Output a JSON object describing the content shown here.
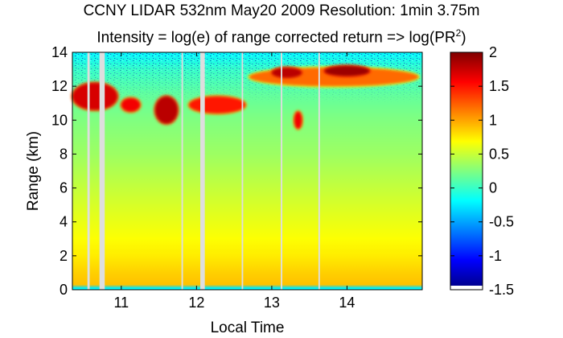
{
  "chart_data": {
    "type": "heatmap",
    "title_line1": "CCNY LIDAR 532nm May20 2009 Resolution: 1min 3.75m",
    "title_line2_prefix": "Intensity = log(e) of range corrected return => log(PR",
    "title_line2_sup": "2",
    "title_line2_suffix": ")",
    "xlabel": "Local Time",
    "ylabel": "Range (km)",
    "xlim": [
      10.35,
      15.0
    ],
    "ylim": [
      0,
      14
    ],
    "xticks": [
      "11",
      "12",
      "13",
      "14"
    ],
    "xtick_values": [
      11,
      12,
      13,
      14
    ],
    "yticks": [
      "0",
      "2",
      "4",
      "6",
      "8",
      "10",
      "12",
      "14"
    ],
    "ytick_values": [
      0,
      2,
      4,
      6,
      8,
      10,
      12,
      14
    ],
    "colorbar": {
      "colormap": "jet",
      "range": [
        -1.5,
        2
      ],
      "ticks": [
        "2",
        "1.5",
        "1",
        "0.5",
        "0",
        "-0.5",
        "-1",
        "-1.5"
      ],
      "tick_values": [
        2,
        1.5,
        1,
        0.5,
        0,
        -0.5,
        -1,
        -1.5
      ]
    },
    "background_profile": [
      {
        "range_km": 0.1,
        "value": -0.3
      },
      {
        "range_km": 0.3,
        "value": 0.9
      },
      {
        "range_km": 1.0,
        "value": 0.85
      },
      {
        "range_km": 2.0,
        "value": 0.75
      },
      {
        "range_km": 3.0,
        "value": 0.68
      },
      {
        "range_km": 5.0,
        "value": 0.55
      },
      {
        "range_km": 8.0,
        "value": 0.35
      },
      {
        "range_km": 10.0,
        "value": 0.25
      },
      {
        "range_km": 11.5,
        "value": 0.15
      },
      {
        "range_km": 13.0,
        "value": 0.0
      },
      {
        "range_km": 14.0,
        "value": -0.2
      }
    ],
    "features": [
      {
        "name": "cloud",
        "time_start": 10.35,
        "time_end": 10.95,
        "range_start_km": 10.6,
        "range_end_km": 12.2,
        "value": 1.7
      },
      {
        "name": "cloud",
        "time_start": 11.0,
        "time_end": 11.25,
        "range_start_km": 10.5,
        "range_end_km": 11.3,
        "value": 1.6
      },
      {
        "name": "cloud",
        "time_start": 11.45,
        "time_end": 11.75,
        "range_start_km": 9.8,
        "range_end_km": 11.4,
        "value": 1.8
      },
      {
        "name": "cloud",
        "time_start": 11.9,
        "time_end": 12.65,
        "range_start_km": 10.4,
        "range_end_km": 11.4,
        "value": 1.5
      },
      {
        "name": "cloud",
        "time_start": 12.7,
        "time_end": 14.95,
        "range_start_km": 12.0,
        "range_end_km": 13.1,
        "value": 1.2
      },
      {
        "name": "cloud",
        "time_start": 13.0,
        "time_end": 13.4,
        "range_start_km": 12.5,
        "range_end_km": 13.1,
        "value": 1.8
      },
      {
        "name": "cloud",
        "time_start": 13.7,
        "time_end": 14.3,
        "range_start_km": 12.6,
        "range_end_km": 13.2,
        "value": 1.9
      },
      {
        "name": "cloud",
        "time_start": 13.3,
        "time_end": 13.4,
        "range_start_km": 9.5,
        "range_end_km": 10.5,
        "value": 1.6
      }
    ],
    "data_gaps": [
      {
        "time_start": 10.55,
        "time_end": 10.58
      },
      {
        "time_start": 10.71,
        "time_end": 10.78
      },
      {
        "time_start": 11.8,
        "time_end": 11.82
      },
      {
        "time_start": 12.05,
        "time_end": 12.11
      },
      {
        "time_start": 12.6,
        "time_end": 12.62
      },
      {
        "time_start": 13.12,
        "time_end": 13.14
      },
      {
        "time_start": 13.62,
        "time_end": 13.64
      }
    ]
  }
}
